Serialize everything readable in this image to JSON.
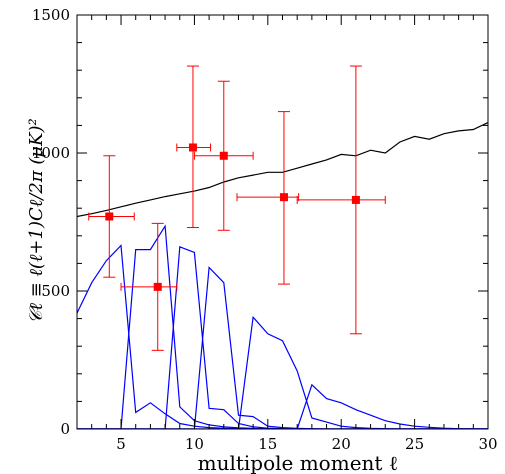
{
  "chart_data": {
    "type": "scatter",
    "title": "",
    "xlabel": "multipole moment ℓ",
    "ylabel": "𝒞ℓ ≡ ℓ(ℓ+1)Cℓ/2π  (μK)²",
    "xlim": [
      2,
      30
    ],
    "ylim": [
      0,
      1500
    ],
    "x_ticks": [
      5,
      10,
      15,
      20,
      25,
      30
    ],
    "x_tick_labels": [
      "5",
      "10",
      "15",
      "20",
      "25",
      "30"
    ],
    "y_ticks": [
      0,
      500,
      1000,
      1500
    ],
    "y_tick_labels": [
      "0",
      "500",
      "1000",
      "1500"
    ],
    "grid": false,
    "colors": {
      "data": "#ff0000",
      "model": "#000000",
      "window": "#0000ff"
    },
    "series": [
      {
        "type": "errorbar",
        "color": "#ff0000",
        "points": [
          {
            "x": 4.2,
            "y": 770,
            "xerr": [
              2.8,
              5.9
            ],
            "yerr": [
              550,
              990
            ]
          },
          {
            "x": 7.5,
            "y": 515,
            "xerr": [
              5.0,
              8.8
            ],
            "yerr": [
              285,
              745
            ]
          },
          {
            "x": 9.9,
            "y": 1020,
            "xerr": [
              8.8,
              11.1
            ],
            "yerr": [
              730,
              1315
            ]
          },
          {
            "x": 12.0,
            "y": 990,
            "xerr": [
              10.0,
              14.0
            ],
            "yerr": [
              720,
              1260
            ]
          },
          {
            "x": 16.1,
            "y": 840,
            "xerr": [
              12.9,
              17.1
            ],
            "yerr": [
              525,
              1150
            ]
          },
          {
            "x": 21.0,
            "y": 830,
            "xerr": [
              17.0,
              23.0
            ],
            "yerr": [
              345,
              1315
            ]
          }
        ]
      },
      {
        "type": "line",
        "color": "#000000",
        "x": [
          2,
          3,
          4,
          5,
          6,
          7,
          8,
          9,
          10,
          11,
          12,
          13,
          14,
          15,
          16,
          17,
          18,
          19,
          20,
          21,
          22,
          23,
          24,
          25,
          26,
          27,
          28,
          29,
          30
        ],
        "y": [
          770,
          780,
          792,
          805,
          818,
          830,
          842,
          852,
          862,
          875,
          895,
          910,
          920,
          930,
          930,
          945,
          960,
          975,
          995,
          990,
          1010,
          1000,
          1040,
          1060,
          1050,
          1070,
          1080,
          1085,
          1110
        ]
      },
      {
        "type": "line",
        "color": "#0000ff",
        "x": [
          2,
          3,
          4,
          5,
          6,
          7,
          8,
          9,
          10,
          11,
          12,
          13,
          14,
          15,
          16,
          17,
          18,
          19,
          20,
          21,
          22,
          23,
          24,
          25,
          26,
          27,
          28,
          29,
          30
        ],
        "y": [
          420,
          530,
          610,
          665,
          60,
          95,
          55,
          20,
          10,
          5,
          3,
          2,
          1,
          0,
          0,
          0,
          0,
          0,
          0,
          0,
          0,
          0,
          0,
          0,
          0,
          0,
          0,
          0,
          0
        ]
      },
      {
        "type": "line",
        "color": "#0000ff",
        "x": [
          2,
          3,
          4,
          5,
          6,
          7,
          8,
          9,
          10,
          11,
          12,
          13,
          14,
          15,
          16,
          17,
          18,
          19,
          20,
          21,
          22,
          23,
          24,
          25,
          26,
          27,
          28,
          29,
          30
        ],
        "y": [
          0,
          0,
          0,
          0,
          650,
          650,
          735,
          80,
          30,
          15,
          8,
          4,
          2,
          1,
          0,
          0,
          0,
          0,
          0,
          0,
          0,
          0,
          0,
          0,
          0,
          0,
          0,
          0,
          0
        ]
      },
      {
        "type": "line",
        "color": "#0000ff",
        "x": [
          2,
          3,
          4,
          5,
          6,
          7,
          8,
          9,
          10,
          11,
          12,
          13,
          14,
          15,
          16,
          17,
          18,
          19,
          20,
          21,
          22,
          23,
          24,
          25,
          26,
          27,
          28,
          29,
          30
        ],
        "y": [
          0,
          0,
          0,
          0,
          0,
          0,
          0,
          660,
          640,
          75,
          70,
          20,
          8,
          3,
          1,
          0,
          0,
          0,
          0,
          0,
          0,
          0,
          0,
          0,
          0,
          0,
          0,
          0,
          0
        ]
      },
      {
        "type": "line",
        "color": "#0000ff",
        "x": [
          2,
          3,
          4,
          5,
          6,
          7,
          8,
          9,
          10,
          11,
          12,
          13,
          14,
          15,
          16,
          17,
          18,
          19,
          20,
          21,
          22,
          23,
          24,
          25,
          26,
          27,
          28,
          29,
          30
        ],
        "y": [
          0,
          0,
          0,
          0,
          0,
          0,
          0,
          0,
          0,
          585,
          530,
          50,
          45,
          10,
          5,
          2,
          1,
          0,
          0,
          0,
          0,
          0,
          0,
          0,
          0,
          0,
          0,
          0,
          0
        ]
      },
      {
        "type": "line",
        "color": "#0000ff",
        "x": [
          2,
          3,
          4,
          5,
          6,
          7,
          8,
          9,
          10,
          11,
          12,
          13,
          14,
          15,
          16,
          17,
          18,
          19,
          20,
          21,
          22,
          23,
          24,
          25,
          26,
          27,
          28,
          29,
          30
        ],
        "y": [
          0,
          0,
          0,
          0,
          0,
          0,
          0,
          0,
          0,
          0,
          0,
          0,
          405,
          345,
          320,
          210,
          40,
          25,
          10,
          5,
          2,
          1,
          0,
          0,
          0,
          0,
          0,
          0,
          0
        ]
      },
      {
        "type": "line",
        "color": "#0000ff",
        "x": [
          2,
          3,
          4,
          5,
          6,
          7,
          8,
          9,
          10,
          11,
          12,
          13,
          14,
          15,
          16,
          17,
          18,
          19,
          20,
          21,
          22,
          23,
          24,
          25,
          26,
          27,
          28,
          29,
          30
        ],
        "y": [
          0,
          0,
          0,
          0,
          0,
          0,
          0,
          0,
          0,
          0,
          0,
          0,
          0,
          0,
          0,
          0,
          160,
          110,
          95,
          70,
          50,
          30,
          18,
          10,
          6,
          3,
          1,
          0,
          0
        ]
      }
    ]
  }
}
